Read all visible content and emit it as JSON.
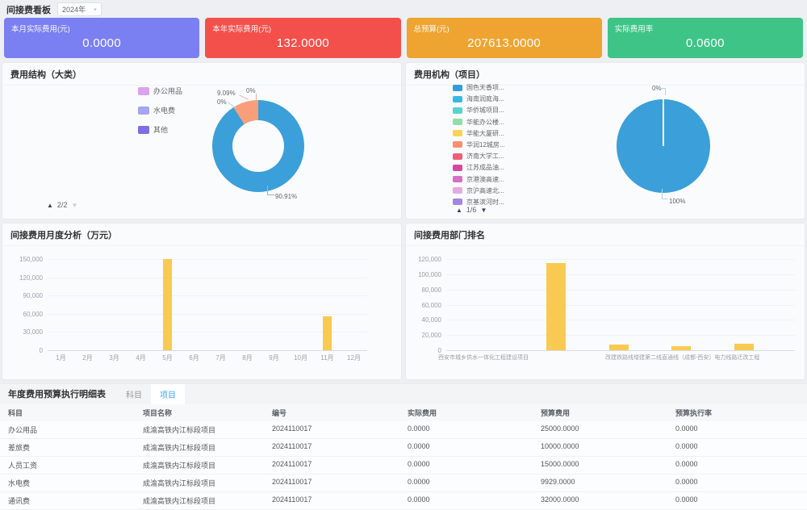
{
  "header": {
    "title": "间接费看板",
    "year_select": {
      "value": "2024年",
      "caret": "▾"
    }
  },
  "kpi_cards": [
    {
      "label": "本月实际费用(元)",
      "value": "0.0000",
      "color": "#7a7ff2"
    },
    {
      "label": "本年实际费用(元)",
      "value": "132.0000",
      "color": "#f4504b"
    },
    {
      "label": "总预算(元)",
      "value": "207613.0000",
      "color": "#efa431"
    },
    {
      "label": "实际费用率",
      "value": "0.0600",
      "color": "#3ec487"
    }
  ],
  "category_panel": {
    "title": "费用结构（大类）",
    "legend": [
      {
        "label": "办公用品",
        "color": "#daa3ec"
      },
      {
        "label": "水电费",
        "color": "#a3a6f2"
      },
      {
        "label": "其他",
        "color": "#7b70e8"
      }
    ],
    "labels": {
      "nine": "9.09%",
      "zero_top": "0%",
      "zero_left": "0%",
      "main": "90.91%"
    },
    "pagination": {
      "up": "▲",
      "text": "2/2",
      "down": "▼"
    },
    "colors": {
      "main": "#3b9fd9",
      "second": "#f89e7b"
    }
  },
  "project_panel": {
    "title": "费用机构（项目）",
    "legend": [
      {
        "label": "国色天香项...",
        "color": "#2f9fd8"
      },
      {
        "label": "海南润庭海...",
        "color": "#38b9e3"
      },
      {
        "label": "华侨城项目...",
        "color": "#55d5cd"
      },
      {
        "label": "华能办公楼...",
        "color": "#90dfa8"
      },
      {
        "label": "华能大厦研...",
        "color": "#fbd354"
      },
      {
        "label": "华润12城房...",
        "color": "#fa8f6e"
      },
      {
        "label": "济南大学工...",
        "color": "#ee5e78"
      },
      {
        "label": "江苏成品油...",
        "color": "#d8489e"
      },
      {
        "label": "京港澳高速...",
        "color": "#d86ec6"
      },
      {
        "label": "京沪高速北...",
        "color": "#e7a9e3"
      },
      {
        "label": "京基滨河时...",
        "color": "#a385e3"
      },
      {
        "label": "春运专线广...",
        "color": "#7a6ad8"
      },
      {
        "label": "龙湖三千里...",
        "color": "#8fb3ec"
      },
      {
        "label": "",
        "color": "#7fd8ee"
      }
    ],
    "labels": {
      "zero": "0%",
      "hundred": "100%"
    },
    "pagination": {
      "up": "▲",
      "text": "1/6",
      "down": "▼"
    },
    "colors": {
      "main": "#3b9fd9"
    }
  },
  "monthly_panel": {
    "title": "间接费用月度分析（万元）",
    "y_ticks": [
      "150,000",
      "120,000",
      "90,000",
      "60,000",
      "30,000",
      "0"
    ],
    "months": [
      "1月",
      "2月",
      "3月",
      "4月",
      "5月",
      "6月",
      "7月",
      "8月",
      "9月",
      "10月",
      "11月",
      "12月"
    ],
    "values": [
      0,
      0,
      0,
      0,
      150000,
      0,
      0,
      0,
      0,
      0,
      56000,
      0
    ],
    "max": 150000,
    "bar_color": "#f9ca52"
  },
  "dept_panel": {
    "title": "间接费用部门排名",
    "y_ticks": [
      "120,000",
      "100,000",
      "80,000",
      "60,000",
      "40,000",
      "20,000",
      "0"
    ],
    "x_labels": [
      "西安市城乡供水一体化工程建设项目",
      "改建铁路线增建第二线直通线（成都-西安）电力线路迁改工程"
    ],
    "values": [
      0,
      0,
      115000,
      7000,
      5000,
      8500
    ],
    "max": 120000,
    "bar_color": "#f9ca52"
  },
  "table": {
    "title": "年度费用预算执行明细表",
    "tabs": [
      {
        "label": "科目",
        "active": false
      },
      {
        "label": "项目",
        "active": true
      }
    ],
    "columns": [
      "科目",
      "项目名称",
      "编号",
      "实际费用",
      "预算费用",
      "预算执行率"
    ],
    "rows": [
      [
        "办公用品",
        "成渝高铁内江标段项目",
        "2024110017",
        "0.0000",
        "25000.0000",
        "0.0000"
      ],
      [
        "差旅费",
        "成渝高铁内江标段项目",
        "2024110017",
        "0.0000",
        "10000.0000",
        "0.0000"
      ],
      [
        "人员工资",
        "成渝高铁内江标段项目",
        "2024110017",
        "0.0000",
        "15000.0000",
        "0.0000"
      ],
      [
        "水电费",
        "成渝高铁内江标段项目",
        "2024110017",
        "0.0000",
        "9929.0000",
        "0.0000"
      ],
      [
        "通讯费",
        "成渝高铁内江标段项目",
        "2024110017",
        "0.0000",
        "32000.0000",
        "0.0000"
      ]
    ]
  },
  "chart_data": [
    {
      "type": "pie",
      "subtype": "donut",
      "title": "费用结构（大类）",
      "legend_entries": [
        "办公用品",
        "水电费",
        "其他"
      ],
      "legend_position": "left",
      "legend_pagination": "2/2",
      "slices": [
        {
          "label": "90.91%",
          "value": 90.91,
          "color": "#3b9fd9"
        },
        {
          "label": "9.09%",
          "value": 9.09,
          "color": "#f89e7b"
        },
        {
          "label": "0%",
          "value": 0
        },
        {
          "label": "0%",
          "value": 0
        }
      ]
    },
    {
      "type": "pie",
      "title": "费用机构（项目）",
      "legend_entries": [
        "国色天香项...",
        "海南润庭海...",
        "华侨城项目...",
        "华能办公楼...",
        "华能大厦研...",
        "华润12城房...",
        "济南大学工...",
        "江苏成品油...",
        "京港澳高速...",
        "京沪高速北...",
        "京基滨河时...",
        "春运专线广...",
        "龙湖三千里..."
      ],
      "legend_position": "left",
      "legend_pagination": "1/6",
      "slices": [
        {
          "label": "100%",
          "value": 100,
          "color": "#3b9fd9"
        },
        {
          "label": "0%",
          "value": 0
        }
      ]
    },
    {
      "type": "bar",
      "title": "间接费用月度分析（万元）",
      "categories": [
        "1月",
        "2月",
        "3月",
        "4月",
        "5月",
        "6月",
        "7月",
        "8月",
        "9月",
        "10月",
        "11月",
        "12月"
      ],
      "values": [
        0,
        0,
        0,
        0,
        150000,
        0,
        0,
        0,
        0,
        0,
        56000,
        0
      ],
      "ylim": [
        0,
        150000
      ],
      "y_tick_step": 30000,
      "grid": true,
      "bar_color": "#f9ca52"
    },
    {
      "type": "bar",
      "title": "间接费用部门排名",
      "categories": [
        "西安市城乡供水一体化工程建设项目",
        "",
        "",
        "改建铁路线增建第二线直通线（成都-西安）电力线路迁改工程",
        "",
        ""
      ],
      "values": [
        0,
        0,
        115000,
        7000,
        5000,
        8500
      ],
      "ylim": [
        0,
        120000
      ],
      "y_tick_step": 20000,
      "grid": true,
      "bar_color": "#f9ca52"
    }
  ]
}
